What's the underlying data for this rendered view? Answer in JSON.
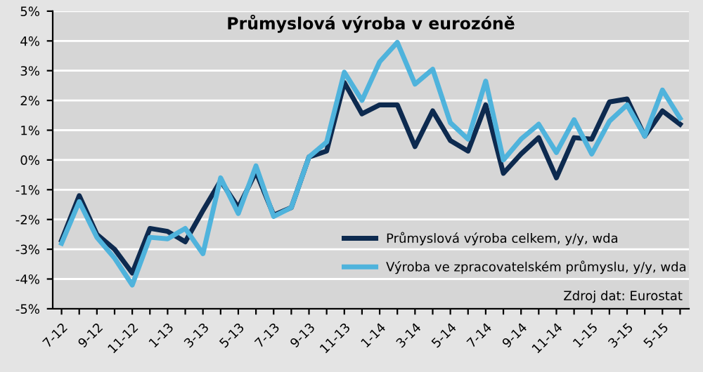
{
  "chart_data": {
    "type": "line",
    "title": "Průmyslová výroba v eurozóně",
    "categories": [
      "7-12",
      null,
      "9-12",
      null,
      "11-12",
      null,
      "1-13",
      null,
      "3-13",
      null,
      "5-13",
      null,
      "7-13",
      null,
      "9-13",
      null,
      "11-13",
      null,
      "1-14",
      null,
      "3-14",
      null,
      "5-14",
      null,
      "7-14",
      null,
      "9-14",
      null,
      "11-14",
      null,
      "1-15",
      null,
      "3-15",
      null,
      "5-15",
      null
    ],
    "series": [
      {
        "name": "Průmyslová výroba celkem, y/y, wda",
        "color": "#0d2a4f",
        "values": [
          -2.7,
          -1.2,
          -2.5,
          -3.0,
          -3.8,
          -2.3,
          -2.4,
          -2.75,
          -1.7,
          -0.7,
          -1.6,
          -0.4,
          -1.85,
          -1.6,
          0.1,
          0.3,
          2.6,
          1.55,
          1.85,
          1.85,
          0.45,
          1.65,
          0.65,
          0.3,
          1.85,
          -0.45,
          0.2,
          0.75,
          -0.6,
          0.75,
          0.7,
          1.95,
          2.05,
          0.8,
          1.65,
          1.2
        ]
      },
      {
        "name": "Výroba ve zpracovatelském průmyslu, y/y, wda",
        "color": "#4fb3dc",
        "values": [
          -2.8,
          -1.4,
          -2.6,
          -3.3,
          -4.2,
          -2.6,
          -2.65,
          -2.3,
          -3.15,
          -0.6,
          -1.8,
          -0.2,
          -1.9,
          -1.6,
          0.1,
          0.6,
          2.95,
          2.0,
          3.3,
          3.95,
          2.55,
          3.05,
          1.25,
          0.7,
          2.65,
          0.0,
          0.7,
          1.2,
          0.25,
          1.35,
          0.2,
          1.3,
          1.85,
          0.8,
          2.35,
          1.4
        ]
      }
    ],
    "ylim": [
      -5,
      5
    ],
    "yticks": [
      {
        "value": -5,
        "label": "-5%"
      },
      {
        "value": -4,
        "label": "-4%"
      },
      {
        "value": -3,
        "label": "-3%"
      },
      {
        "value": -2,
        "label": "-2%"
      },
      {
        "value": -1,
        "label": "-1%"
      },
      {
        "value": 0,
        "label": "0%"
      },
      {
        "value": 1,
        "label": "1%"
      },
      {
        "value": 2,
        "label": "2%"
      },
      {
        "value": 3,
        "label": "3%"
      },
      {
        "value": 4,
        "label": "4%"
      },
      {
        "value": 5,
        "label": "5%"
      }
    ],
    "grid": "y",
    "legend": "bottom right",
    "marker": "none",
    "line_style": "solid",
    "annotations": [
      "Zdroj dat: Eurostat"
    ]
  }
}
